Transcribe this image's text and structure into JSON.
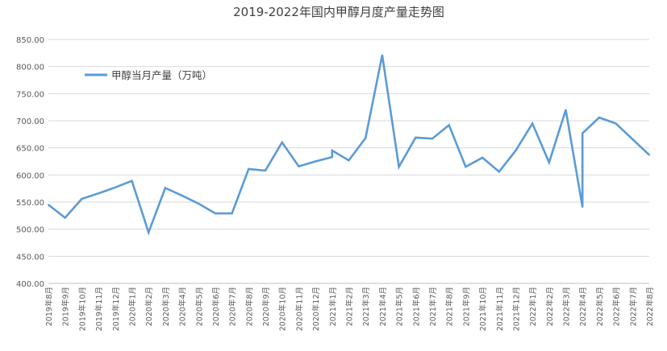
{
  "chart_data": {
    "type": "line",
    "title": "2019-2022年国内甲醇月度产量走势图",
    "xlabel": "",
    "ylabel": "",
    "ylim": [
      400,
      850
    ],
    "y_ticks": [
      "850.00",
      "800.00",
      "750.00",
      "700.00",
      "650.00",
      "600.00",
      "550.00",
      "500.00",
      "450.00",
      "400.00"
    ],
    "y_tick_values": [
      850,
      800,
      750,
      700,
      650,
      600,
      550,
      500,
      450,
      400
    ],
    "categories": [
      "2019年8月",
      "2019年9月",
      "2019年10月",
      "2019年11月",
      "2019年12月",
      "2020年1月",
      "2020年2月",
      "2020年3月",
      "2020年4月",
      "2020年5月",
      "2020年6月",
      "2020年7月",
      "2020年8月",
      "2020年9月",
      "2020年10月",
      "2020年11月",
      "2020年12月",
      "2021年1月",
      "2021年2月",
      "2021年3月",
      "2021年4月",
      "2021年5月",
      "2021年6月",
      "2021年7月",
      "2021年8月",
      "2021年9月",
      "2021年10月",
      "2021年11月",
      "2021年12月",
      "2022年1月",
      "2022年2月",
      "2022年3月",
      "2022年4月",
      "2022年5月",
      "2022年6月",
      "2022年7月",
      "2022年8月"
    ],
    "series": [
      {
        "name": "甲醇当月产量（万吨）",
        "color": "#5b9bd5",
        "points": [
          [
            0,
            545
          ],
          [
            1,
            521
          ],
          [
            2,
            556
          ],
          [
            3,
            566
          ],
          [
            4,
            577
          ],
          [
            5,
            589
          ],
          [
            6,
            494
          ],
          [
            7,
            576
          ],
          [
            8,
            562
          ],
          [
            9,
            547
          ],
          [
            10,
            529
          ],
          [
            11,
            529
          ],
          [
            12,
            611
          ],
          [
            13,
            608
          ],
          [
            14,
            660
          ],
          [
            15,
            616
          ],
          [
            16,
            625
          ],
          [
            17,
            633
          ],
          [
            17,
            645
          ],
          [
            18,
            627
          ],
          [
            19,
            668
          ],
          [
            20,
            821
          ],
          [
            21,
            615
          ],
          [
            22,
            669
          ],
          [
            23,
            667
          ],
          [
            24,
            692
          ],
          [
            25,
            615
          ],
          [
            26,
            632
          ],
          [
            27,
            606
          ],
          [
            28,
            645
          ],
          [
            29,
            695
          ],
          [
            30,
            623
          ],
          [
            31,
            720
          ],
          [
            32,
            541
          ],
          [
            32,
            677
          ],
          [
            33,
            706
          ],
          [
            34,
            695
          ],
          [
            35,
            666
          ],
          [
            36,
            637
          ]
        ]
      }
    ],
    "legend_position": "top-left",
    "grid": true
  }
}
